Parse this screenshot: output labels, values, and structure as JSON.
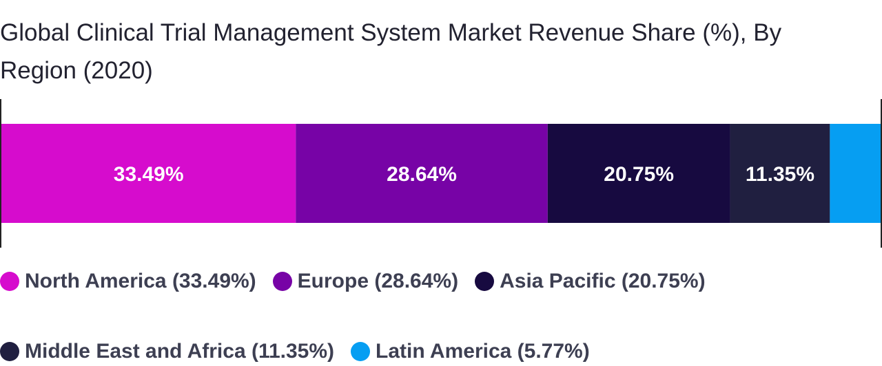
{
  "chart_data": {
    "type": "bar",
    "orientation": "horizontal-stacked",
    "title": "Global Clinical Trial Management System Market Revenue Share (%), By Region (2020)",
    "unit": "%",
    "legend_position": "bottom",
    "series": [
      {
        "name": "North America",
        "value": 33.49,
        "label": "33.49%",
        "legend": "North America (33.49%)",
        "color": "#d60ccd"
      },
      {
        "name": "Europe",
        "value": 28.64,
        "label": "28.64%",
        "legend": "Europe (28.64%)",
        "color": "#7703a6"
      },
      {
        "name": "Asia Pacific",
        "value": 20.75,
        "label": "20.75%",
        "legend": "Asia Pacific (20.75%)",
        "color": "#170a40"
      },
      {
        "name": "Middle East and Africa",
        "value": 11.35,
        "label": "11.35%",
        "legend": "Middle East and Africa (11.35%)",
        "color": "#201f40"
      },
      {
        "name": "Latin America",
        "value": 5.77,
        "label": "",
        "legend": "Latin America (5.77%)",
        "color": "#069ef2"
      }
    ]
  }
}
